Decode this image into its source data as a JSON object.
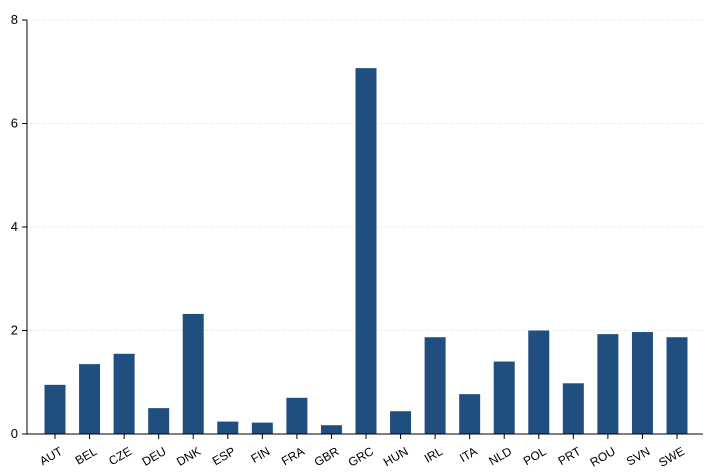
{
  "chart_data": {
    "type": "bar",
    "title": "",
    "xlabel": "",
    "ylabel": "",
    "categories": [
      "AUT",
      "BEL",
      "CZE",
      "DEU",
      "DNK",
      "ESP",
      "FIN",
      "FRA",
      "GBR",
      "GRC",
      "HUN",
      "IRL",
      "ITA",
      "NLD",
      "POL",
      "PRT",
      "ROU",
      "SVN",
      "SWE"
    ],
    "values": [
      0.95,
      1.35,
      1.55,
      0.5,
      2.32,
      0.24,
      0.22,
      0.7,
      0.17,
      7.07,
      0.44,
      1.87,
      0.77,
      1.4,
      2.0,
      0.98,
      1.93,
      1.97,
      1.87
    ],
    "ylim": [
      0,
      8
    ],
    "yticks": [
      "0",
      "2",
      "4",
      "6",
      "8"
    ],
    "grid": true,
    "bar_color": "#1f4e7f",
    "gridline_color": "#d8d8d8"
  }
}
